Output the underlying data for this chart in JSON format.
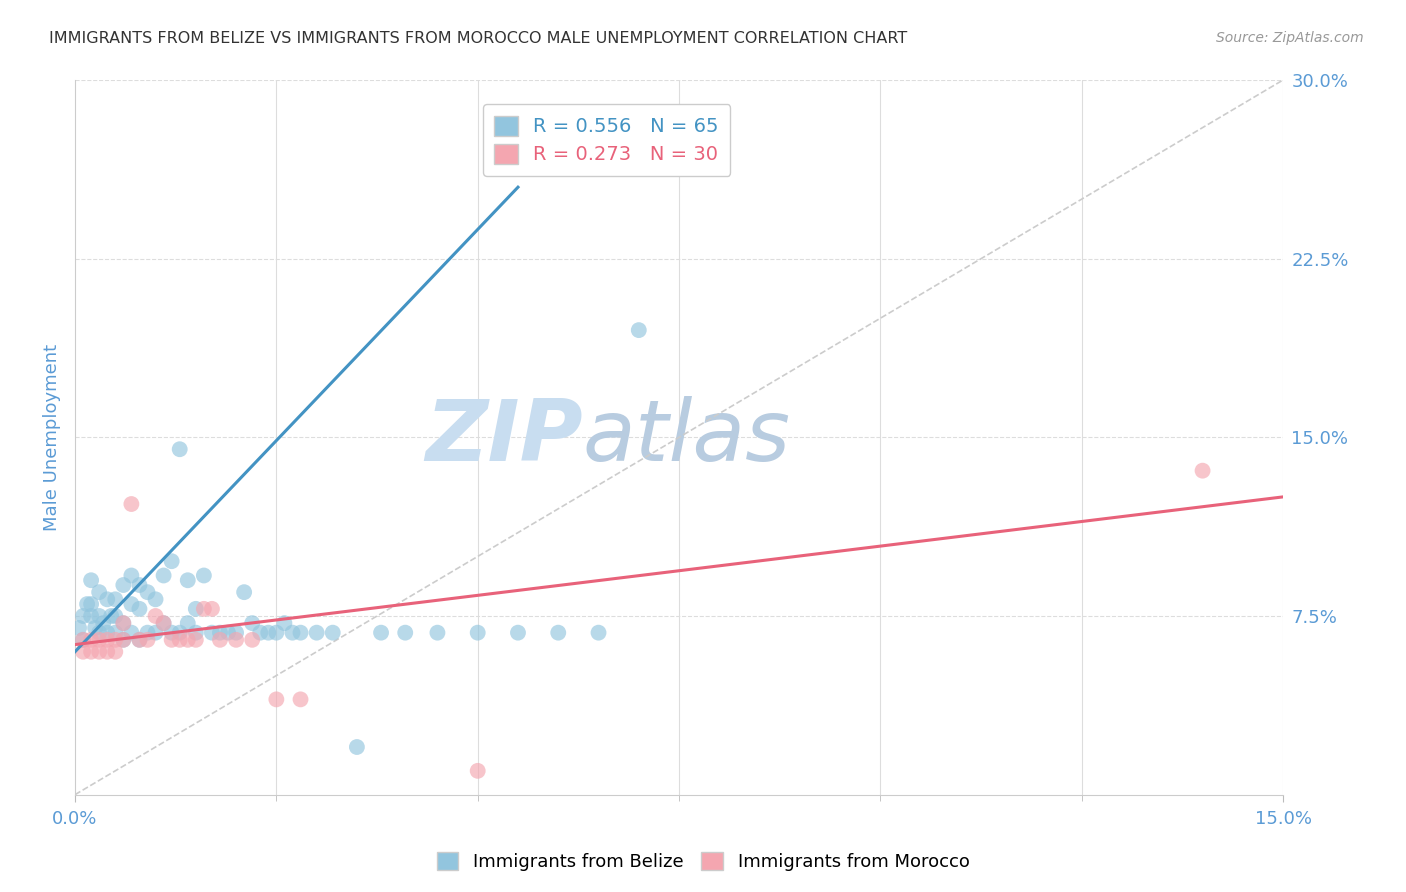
{
  "title": "IMMIGRANTS FROM BELIZE VS IMMIGRANTS FROM MOROCCO MALE UNEMPLOYMENT CORRELATION CHART",
  "source": "Source: ZipAtlas.com",
  "ylabel": "Male Unemployment",
  "xlim": [
    0.0,
    0.15
  ],
  "ylim": [
    0.0,
    0.3
  ],
  "ytick_labels_right": [
    "7.5%",
    "15.0%",
    "22.5%",
    "30.0%"
  ],
  "yticks_right": [
    0.075,
    0.15,
    0.225,
    0.3
  ],
  "belize_R": 0.556,
  "belize_N": 65,
  "morocco_R": 0.273,
  "morocco_N": 30,
  "belize_color": "#92c5de",
  "morocco_color": "#f4a6b0",
  "belize_line_color": "#4393c3",
  "morocco_line_color": "#e8627a",
  "ref_line_color": "#cccccc",
  "axis_label_color": "#5b9bd5",
  "title_color": "#333333",
  "watermark_zip_color": "#d8e8f8",
  "watermark_atlas_color": "#c8d8e8",
  "grid_color": "#dddddd",
  "belize_trend_x": [
    0.0,
    0.055
  ],
  "belize_trend_y": [
    0.06,
    0.255
  ],
  "morocco_trend_x": [
    0.0,
    0.15
  ],
  "morocco_trend_y": [
    0.063,
    0.125
  ],
  "ref_line_x": [
    0.0,
    0.15
  ],
  "ref_line_y": [
    0.0,
    0.3
  ],
  "belize_scatter_x": [
    0.0005,
    0.001,
    0.001,
    0.0015,
    0.002,
    0.002,
    0.002,
    0.0025,
    0.003,
    0.003,
    0.003,
    0.0035,
    0.004,
    0.004,
    0.0045,
    0.005,
    0.005,
    0.005,
    0.006,
    0.006,
    0.006,
    0.007,
    0.007,
    0.007,
    0.008,
    0.008,
    0.008,
    0.009,
    0.009,
    0.01,
    0.01,
    0.011,
    0.011,
    0.012,
    0.012,
    0.013,
    0.013,
    0.014,
    0.014,
    0.015,
    0.015,
    0.016,
    0.017,
    0.018,
    0.019,
    0.02,
    0.021,
    0.022,
    0.023,
    0.024,
    0.025,
    0.026,
    0.027,
    0.028,
    0.03,
    0.032,
    0.035,
    0.038,
    0.041,
    0.045,
    0.05,
    0.055,
    0.06,
    0.065,
    0.07
  ],
  "belize_scatter_y": [
    0.07,
    0.075,
    0.065,
    0.08,
    0.075,
    0.08,
    0.09,
    0.07,
    0.068,
    0.075,
    0.085,
    0.072,
    0.068,
    0.082,
    0.075,
    0.068,
    0.075,
    0.082,
    0.065,
    0.072,
    0.088,
    0.068,
    0.08,
    0.092,
    0.065,
    0.078,
    0.088,
    0.068,
    0.085,
    0.068,
    0.082,
    0.072,
    0.092,
    0.068,
    0.098,
    0.068,
    0.145,
    0.072,
    0.09,
    0.068,
    0.078,
    0.092,
    0.068,
    0.068,
    0.068,
    0.068,
    0.085,
    0.072,
    0.068,
    0.068,
    0.068,
    0.072,
    0.068,
    0.068,
    0.068,
    0.068,
    0.02,
    0.068,
    0.068,
    0.068,
    0.068,
    0.068,
    0.068,
    0.068,
    0.195
  ],
  "morocco_scatter_x": [
    0.001,
    0.001,
    0.002,
    0.002,
    0.003,
    0.003,
    0.004,
    0.004,
    0.005,
    0.005,
    0.006,
    0.006,
    0.007,
    0.008,
    0.009,
    0.01,
    0.011,
    0.012,
    0.013,
    0.014,
    0.015,
    0.016,
    0.017,
    0.018,
    0.02,
    0.022,
    0.025,
    0.028,
    0.05,
    0.14
  ],
  "morocco_scatter_y": [
    0.065,
    0.06,
    0.065,
    0.06,
    0.065,
    0.06,
    0.065,
    0.06,
    0.065,
    0.06,
    0.065,
    0.072,
    0.122,
    0.065,
    0.065,
    0.075,
    0.072,
    0.065,
    0.065,
    0.065,
    0.065,
    0.078,
    0.078,
    0.065,
    0.065,
    0.065,
    0.04,
    0.04,
    0.01,
    0.136
  ]
}
